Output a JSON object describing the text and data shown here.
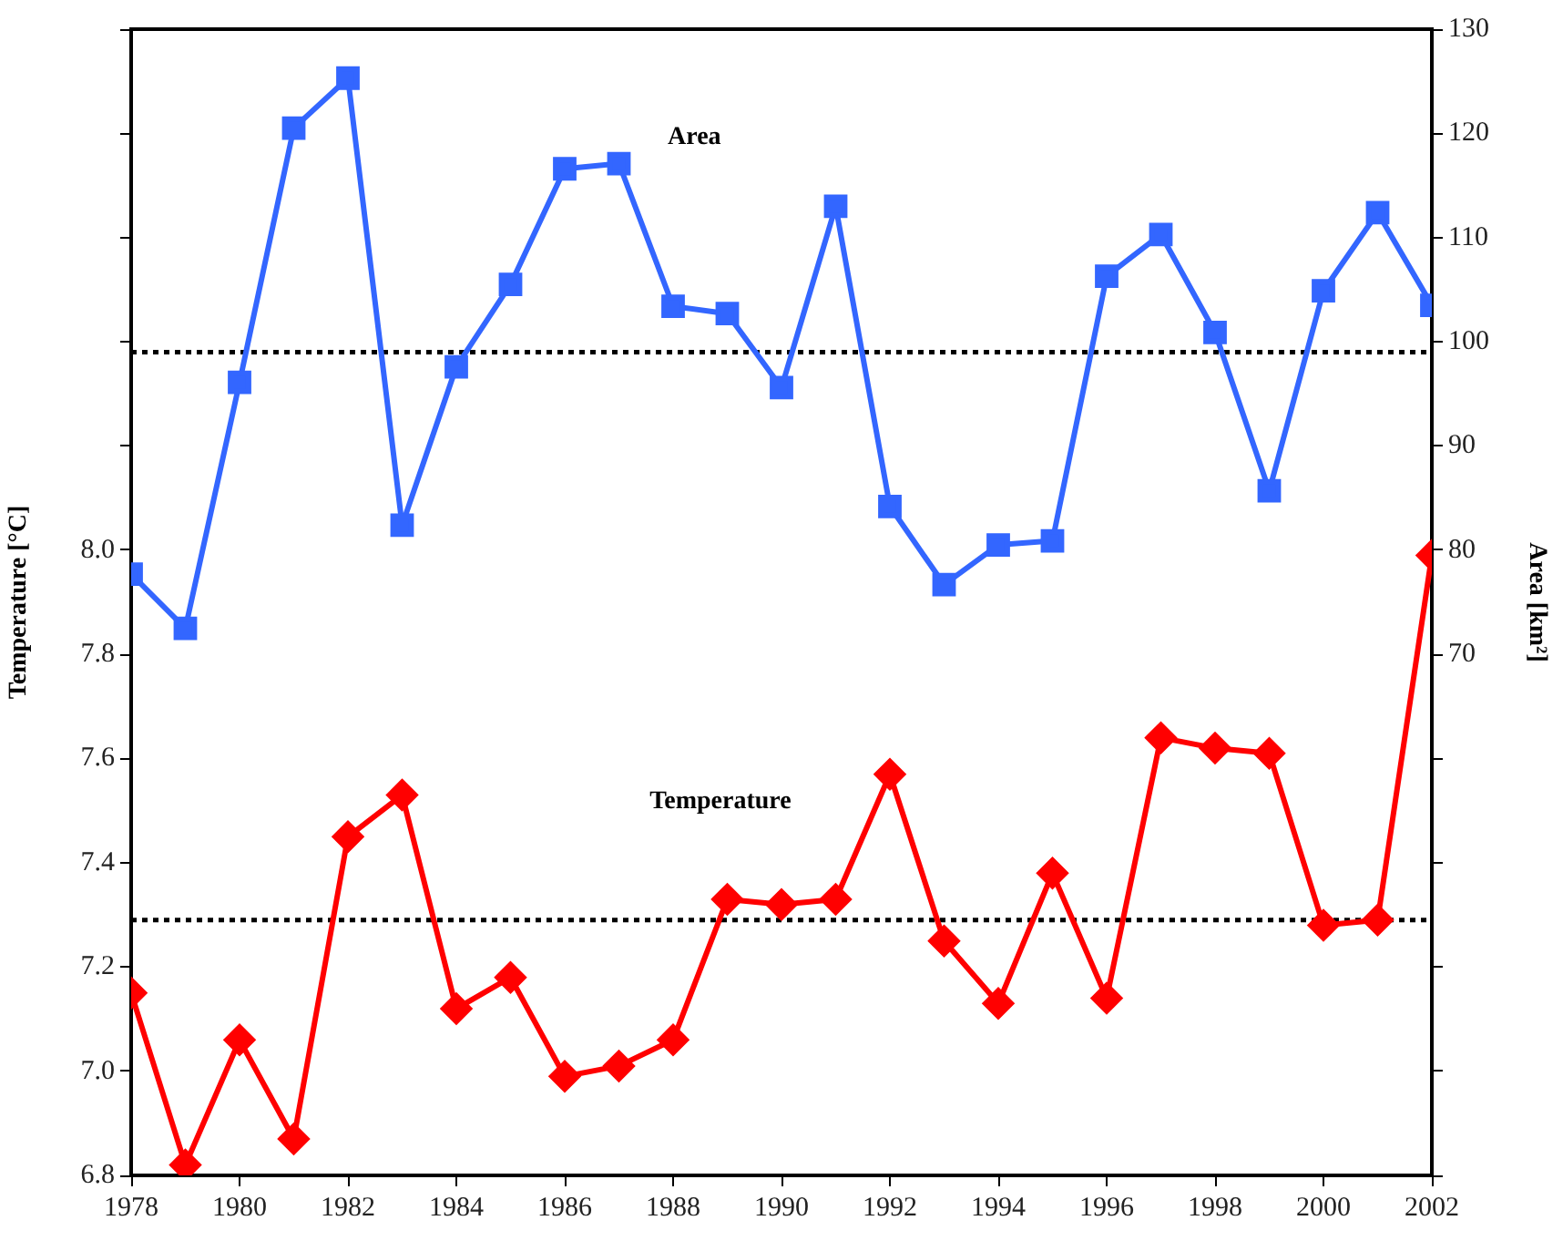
{
  "chart_data": {
    "type": "line",
    "ylabel": "Temperature [°C]",
    "y2label": "Area [km²]",
    "x": [
      1978,
      1979,
      1980,
      1981,
      1982,
      1983,
      1984,
      1985,
      1986,
      1987,
      1988,
      1989,
      1990,
      1991,
      1992,
      1993,
      1994,
      1995,
      1996,
      1997,
      1998,
      1999,
      2000,
      2001,
      2002
    ],
    "series": [
      {
        "name": "Area",
        "color": "#3366ff",
        "axis": "y2",
        "marker": "square",
        "values": [
          77.7,
          72.5,
          96.1,
          120.5,
          125.3,
          82.4,
          97.6,
          105.5,
          116.6,
          117.1,
          103.4,
          102.7,
          95.6,
          113.0,
          84.2,
          76.7,
          80.5,
          80.9,
          106.3,
          110.3,
          100.9,
          85.7,
          104.9,
          112.4,
          103.5
        ]
      },
      {
        "name": "Temperature",
        "color": "#ff0000",
        "axis": "y",
        "marker": "diamond",
        "values": [
          7.15,
          6.82,
          7.06,
          6.87,
          7.45,
          7.53,
          7.12,
          7.18,
          6.99,
          7.01,
          7.06,
          7.33,
          7.32,
          7.33,
          7.57,
          7.25,
          7.13,
          7.38,
          7.14,
          7.64,
          7.62,
          7.61,
          7.28,
          7.29,
          7.99
        ]
      }
    ],
    "xlim": [
      1978,
      2002
    ],
    "xticks": [
      1978,
      1980,
      1982,
      1984,
      1986,
      1988,
      1990,
      1992,
      1994,
      1996,
      1998,
      2000,
      2002
    ],
    "ylim": [
      6.8,
      9.0
    ],
    "yticks": [
      6.8,
      {
        "value": 7.0,
        "label": "7.0"
      },
      7.2,
      7.4,
      7.6,
      7.8,
      {
        "value": 8.0,
        "label": "8.0"
      },
      {
        "value": 8.2,
        "label": null
      },
      {
        "value": 8.4,
        "label": null
      },
      {
        "value": 8.6,
        "label": null
      },
      {
        "value": 8.8,
        "label": null
      },
      {
        "value": 9.0,
        "label": null
      }
    ],
    "y2lim": [
      20,
      130
    ],
    "y2ticks": [
      {
        "value": 20,
        "label": null
      },
      {
        "value": 30,
        "label": null
      },
      {
        "value": 40,
        "label": null
      },
      {
        "value": 50,
        "label": null
      },
      {
        "value": 60,
        "label": null
      },
      70,
      80,
      90,
      100,
      110,
      120,
      130
    ],
    "ref_lines": [
      {
        "axis": "y",
        "value": 7.29,
        "color": "#000000",
        "line_style": "dotted"
      },
      {
        "axis": "y2",
        "value": 99.0,
        "color": "#000000",
        "line_style": "dotted"
      }
    ],
    "grid": false,
    "legend": false,
    "line_style": "solid"
  }
}
